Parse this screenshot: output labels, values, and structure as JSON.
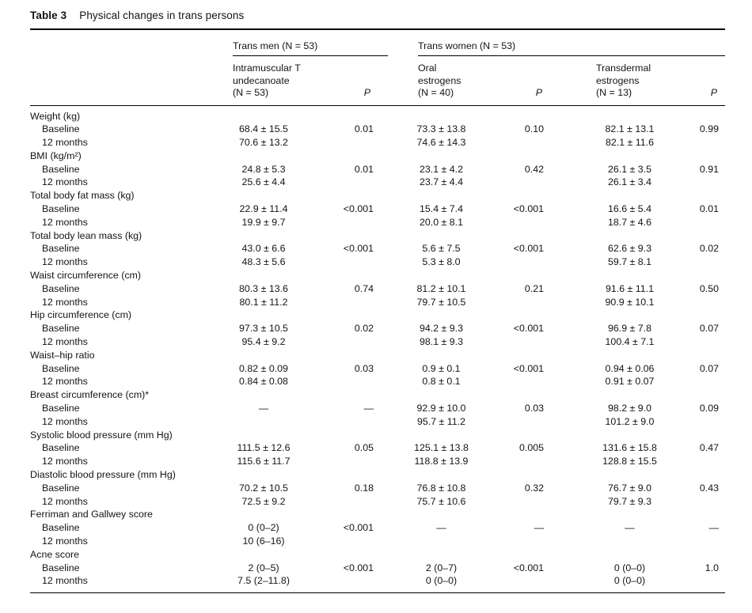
{
  "table": {
    "label": "Table 3",
    "title": "Physical changes in trans persons",
    "groups": [
      {
        "label": "Trans men (N = 53)"
      },
      {
        "label": "Trans women (N = 53)"
      }
    ],
    "columns": [
      {
        "header": "Intramuscular T\nundecanoate\n(N = 53)"
      },
      {
        "header": "P"
      },
      {
        "header": "Oral\nestrogens\n(N = 40)"
      },
      {
        "header": "P"
      },
      {
        "header": "Transdermal\nestrogens\n(N = 13)"
      },
      {
        "header": "P"
      }
    ],
    "rows": [
      {
        "type": "section",
        "label": "Weight (kg)"
      },
      {
        "type": "data",
        "label": "Baseline",
        "cells": [
          "68.4 ± 15.5",
          "0.01",
          "73.3 ± 13.8",
          "0.10",
          "82.1 ± 13.1",
          "0.99"
        ]
      },
      {
        "type": "data",
        "label": "12 months",
        "cells": [
          "70.6 ± 13.2",
          "",
          "74.6 ± 14.3",
          "",
          "82.1 ± 11.6",
          ""
        ]
      },
      {
        "type": "section",
        "label": "BMI (kg/m²)"
      },
      {
        "type": "data",
        "label": "Baseline",
        "cells": [
          "24.8 ± 5.3",
          "0.01",
          "23.1 ± 4.2",
          "0.42",
          "26.1 ± 3.5",
          "0.91"
        ]
      },
      {
        "type": "data",
        "label": "12 months",
        "cells": [
          "25.6 ± 4.4",
          "",
          "23.7 ± 4.4",
          "",
          "26.1 ± 3.4",
          ""
        ]
      },
      {
        "type": "section",
        "label": "Total body fat mass (kg)"
      },
      {
        "type": "data",
        "label": "Baseline",
        "cells": [
          "22.9 ± 11.4",
          "<0.001",
          "15.4 ± 7.4",
          "<0.001",
          "16.6 ± 5.4",
          "0.01"
        ]
      },
      {
        "type": "data",
        "label": "12 months",
        "cells": [
          "19.9 ± 9.7",
          "",
          "20.0 ± 8.1",
          "",
          "18.7 ± 4.6",
          ""
        ]
      },
      {
        "type": "section",
        "label": "Total body lean mass (kg)"
      },
      {
        "type": "data",
        "label": "Baseline",
        "cells": [
          "43.0 ± 6.6",
          "<0.001",
          "5.6 ± 7.5",
          "<0.001",
          "62.6 ± 9.3",
          "0.02"
        ]
      },
      {
        "type": "data",
        "label": "12 months",
        "cells": [
          "48.3 ± 5.6",
          "",
          "5.3 ± 8.0",
          "",
          "59.7 ± 8.1",
          ""
        ]
      },
      {
        "type": "section",
        "label": "Waist circumference (cm)"
      },
      {
        "type": "data",
        "label": "Baseline",
        "cells": [
          "80.3 ± 13.6",
          "0.74",
          "81.2 ± 10.1",
          "0.21",
          "91.6 ± 11.1",
          "0.50"
        ]
      },
      {
        "type": "data",
        "label": "12 months",
        "cells": [
          "80.1 ± 11.2",
          "",
          "79.7 ± 10.5",
          "",
          "90.9 ± 10.1",
          ""
        ]
      },
      {
        "type": "section",
        "label": "Hip circumference (cm)"
      },
      {
        "type": "data",
        "label": "Baseline",
        "cells": [
          "97.3 ± 10.5",
          "0.02",
          "94.2 ± 9.3",
          "<0.001",
          "96.9 ± 7.8",
          "0.07"
        ]
      },
      {
        "type": "data",
        "label": "12 months",
        "cells": [
          "95.4 ± 9.2",
          "",
          "98.1 ± 9.3",
          "",
          "100.4 ± 7.1",
          ""
        ]
      },
      {
        "type": "section",
        "label": "Waist–hip ratio"
      },
      {
        "type": "data",
        "label": "Baseline",
        "cells": [
          "0.82 ± 0.09",
          "0.03",
          "0.9 ± 0.1",
          "<0.001",
          "0.94 ± 0.06",
          "0.07"
        ]
      },
      {
        "type": "data",
        "label": "12 months",
        "cells": [
          "0.84 ± 0.08",
          "",
          "0.8 ± 0.1",
          "",
          "0.91 ± 0.07",
          ""
        ]
      },
      {
        "type": "section",
        "label": "Breast circumference (cm)*"
      },
      {
        "type": "data",
        "label": "Baseline",
        "cells": [
          "—",
          "—",
          "92.9 ± 10.0",
          "0.03",
          "98.2 ± 9.0",
          "0.09"
        ]
      },
      {
        "type": "data",
        "label": "12 months",
        "cells": [
          "",
          "",
          "95.7 ± 11.2",
          "",
          "101.2 ± 9.0",
          ""
        ]
      },
      {
        "type": "section",
        "label": "Systolic blood pressure (mm Hg)"
      },
      {
        "type": "data",
        "label": "Baseline",
        "cells": [
          "111.5 ± 12.6",
          "0.05",
          "125.1 ± 13.8",
          "0.005",
          "131.6 ± 15.8",
          "0.47"
        ]
      },
      {
        "type": "data",
        "label": "12 months",
        "cells": [
          "115.6 ± 11.7",
          "",
          "118.8 ± 13.9",
          "",
          "128.8 ± 15.5",
          ""
        ]
      },
      {
        "type": "section",
        "label": "Diastolic blood pressure (mm Hg)"
      },
      {
        "type": "data",
        "label": "Baseline",
        "cells": [
          "70.2 ± 10.5",
          "0.18",
          "76.8 ± 10.8",
          "0.32",
          "76.7 ± 9.0",
          "0.43"
        ]
      },
      {
        "type": "data",
        "label": "12 months",
        "cells": [
          "72.5 ± 9.2",
          "",
          "75.7 ± 10.6",
          "",
          "79.7 ± 9.3",
          ""
        ]
      },
      {
        "type": "section",
        "label": "Ferriman and Gallwey score"
      },
      {
        "type": "data",
        "label": "Baseline",
        "cells": [
          "0 (0–2)",
          "<0.001",
          "—",
          "—",
          "—",
          "—"
        ]
      },
      {
        "type": "data",
        "label": "12 months",
        "cells": [
          "10 (6–16)",
          "",
          "",
          "",
          "",
          ""
        ]
      },
      {
        "type": "section",
        "label": "Acne score"
      },
      {
        "type": "data",
        "label": "Baseline",
        "cells": [
          "2 (0–5)",
          "<0.001",
          "2 (0–7)",
          "<0.001",
          "0 (0–0)",
          "1.0"
        ]
      },
      {
        "type": "data",
        "label": "12 months",
        "cells": [
          "7.5 (2–11.8)",
          "",
          "0 (0–0)",
          "",
          "0 (0–0)",
          ""
        ]
      }
    ]
  }
}
